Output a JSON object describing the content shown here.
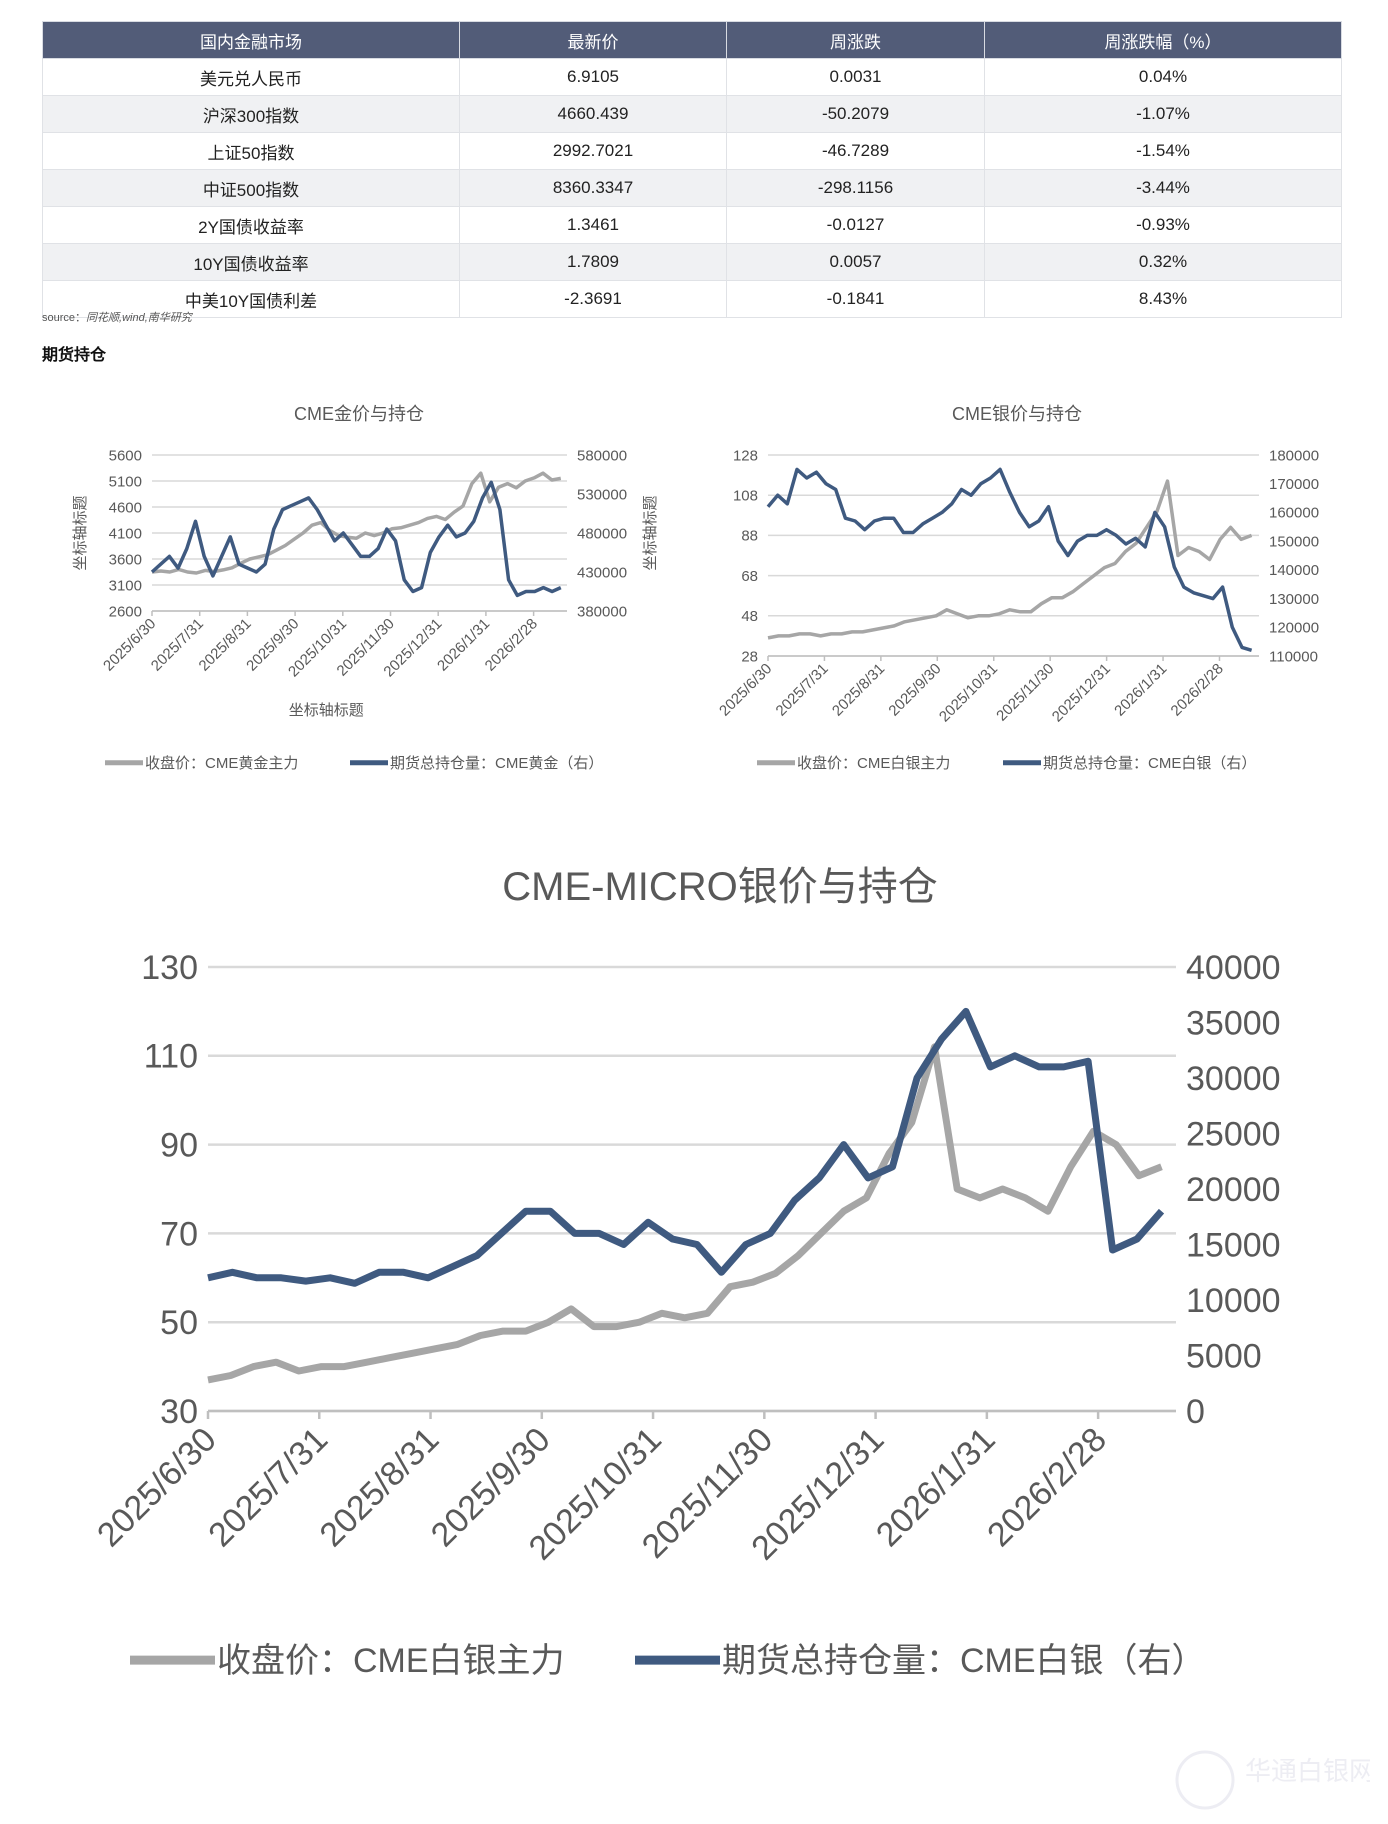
{
  "table": {
    "headers": [
      "国内金融市场",
      "最新价",
      "周涨跌",
      "周涨跌幅（%）"
    ],
    "rows": [
      [
        "美元兑人民币",
        "6.9105",
        "0.0031",
        "0.04%"
      ],
      [
        "沪深300指数",
        "4660.439",
        "-50.2079",
        "-1.07%"
      ],
      [
        "上证50指数",
        "2992.7021",
        "-46.7289",
        "-1.54%"
      ],
      [
        "中证500指数",
        "8360.3347",
        "-298.1156",
        "-3.44%"
      ],
      [
        "2Y国债收益率",
        "1.3461",
        "-0.0127",
        "-0.93%"
      ],
      [
        "10Y国债收益率",
        "1.7809",
        "0.0057",
        "0.32%"
      ],
      [
        "中美10Y国债利差",
        "-2.3691",
        "-0.1841",
        "8.43%"
      ]
    ]
  },
  "source": {
    "label": "source：",
    "text": "同花顺,wind,南华研究"
  },
  "section_title": "期货持仓",
  "colors": {
    "header": "#525c78",
    "price": "#a6a6a6",
    "oi": "#3f5a80",
    "text": "#595959",
    "grid": "#d9d9d9"
  },
  "watermark": "华通白银网 www.ebaiyin.com",
  "chart_data": [
    {
      "type": "line",
      "title": "CME金价与持仓",
      "ylabel": "坐标轴标题",
      "y2label": "坐标轴标题",
      "xlabel": "坐标轴标题",
      "ylim": [
        2600,
        5600
      ],
      "yticks": [
        5600,
        5100,
        4600,
        4100,
        3600,
        3100,
        2600
      ],
      "y2lim": [
        380000,
        580000
      ],
      "y2ticks": [
        580000,
        530000,
        480000,
        430000,
        380000
      ],
      "xticks": [
        "2025/6/30",
        "2025/7/31",
        "2025/8/31",
        "2025/9/30",
        "2025/10/31",
        "2025/11/30",
        "2025/12/31",
        "2026/1/31",
        "2026/2/28"
      ],
      "grid": true,
      "legend": "bottom",
      "series": [
        {
          "name": "收盘价：CME黄金主力",
          "axis": "left",
          "values": [
            3350,
            3370,
            3350,
            3400,
            3350,
            3330,
            3380,
            3360,
            3390,
            3430,
            3520,
            3600,
            3640,
            3680,
            3770,
            3860,
            3980,
            4100,
            4250,
            4300,
            4150,
            4050,
            4020,
            4000,
            4100,
            4050,
            4100,
            4180,
            4200,
            4250,
            4300,
            4380,
            4420,
            4360,
            4500,
            4620,
            5050,
            5250,
            4700,
            4980,
            5050,
            4970,
            5100,
            5160,
            5250,
            5120,
            5150
          ]
        },
        {
          "name": "期货总持仓量：CME黄金（右）",
          "axis": "right",
          "values": [
            430000,
            440000,
            450000,
            435000,
            460000,
            495000,
            450000,
            425000,
            450000,
            475000,
            440000,
            435000,
            430000,
            440000,
            485000,
            510000,
            515000,
            520000,
            525000,
            510000,
            490000,
            470000,
            480000,
            465000,
            450000,
            450000,
            460000,
            485000,
            470000,
            420000,
            405000,
            410000,
            455000,
            475000,
            490000,
            475000,
            480000,
            495000,
            525000,
            545000,
            510000,
            420000,
            400000,
            405000,
            405000,
            410000,
            405000,
            410000
          ]
        }
      ]
    },
    {
      "type": "line",
      "title": "CME银价与持仓",
      "ylim": [
        28,
        128
      ],
      "yticks": [
        128,
        108,
        88,
        68,
        48,
        28
      ],
      "y2lim": [
        110000,
        180000
      ],
      "y2ticks": [
        180000,
        170000,
        160000,
        150000,
        140000,
        130000,
        120000,
        110000
      ],
      "xticks": [
        "2025/6/30",
        "2025/7/31",
        "2025/8/31",
        "2025/9/30",
        "2025/10/31",
        "2025/11/30",
        "2025/12/31",
        "2026/1/31",
        "2026/2/28"
      ],
      "grid": true,
      "legend": "bottom",
      "series": [
        {
          "name": "收盘价：CME白银主力",
          "axis": "left",
          "values": [
            37,
            38,
            38,
            39,
            39,
            38,
            39,
            39,
            40,
            40,
            41,
            42,
            43,
            45,
            46,
            47,
            48,
            51,
            49,
            47,
            48,
            48,
            49,
            51,
            50,
            50,
            54,
            57,
            57,
            60,
            64,
            68,
            72,
            74,
            80,
            84,
            92,
            100,
            115,
            78,
            82,
            80,
            76,
            86,
            92,
            86,
            88
          ]
        },
        {
          "name": "期货总持仓量：CME白银（右）",
          "axis": "right",
          "values": [
            162000,
            166000,
            163000,
            175000,
            172000,
            174000,
            170000,
            168000,
            158000,
            157000,
            154000,
            157000,
            158000,
            158000,
            153000,
            153000,
            156000,
            158000,
            160000,
            163000,
            168000,
            166000,
            170000,
            172000,
            175000,
            167000,
            160000,
            155000,
            157000,
            162000,
            150000,
            145000,
            150000,
            152000,
            152000,
            154000,
            152000,
            149000,
            151000,
            148000,
            160000,
            155000,
            141000,
            134000,
            132000,
            131000,
            130000,
            134000,
            120000,
            113000,
            112000
          ]
        }
      ]
    },
    {
      "type": "line",
      "title": "CME-MICRO银价与持仓",
      "ylim": [
        30,
        130
      ],
      "yticks": [
        130,
        110,
        90,
        70,
        50,
        30
      ],
      "y2lim": [
        0,
        40000
      ],
      "y2ticks": [
        40000,
        35000,
        30000,
        25000,
        20000,
        15000,
        10000,
        5000,
        0
      ],
      "xticks": [
        "2025/6/30",
        "2025/7/31",
        "2025/8/31",
        "2025/9/30",
        "2025/10/31",
        "2025/11/30",
        "2025/12/31",
        "2026/1/31",
        "2026/2/28"
      ],
      "grid": true,
      "legend": "bottom",
      "series": [
        {
          "name": "收盘价：CME白银主力",
          "axis": "left",
          "values": [
            37,
            38,
            40,
            41,
            39,
            40,
            40,
            41,
            42,
            43,
            44,
            45,
            47,
            48,
            48,
            50,
            53,
            49,
            49,
            50,
            52,
            51,
            52,
            58,
            59,
            61,
            65,
            70,
            75,
            78,
            88,
            95,
            112,
            80,
            78,
            80,
            78,
            75,
            85,
            93,
            90,
            83,
            85
          ]
        },
        {
          "name": "期货总持仓量：CME白银（右）",
          "axis": "right",
          "values": [
            12000,
            12500,
            12000,
            12000,
            11700,
            12000,
            11500,
            12500,
            12500,
            12000,
            13000,
            14000,
            16000,
            18000,
            18000,
            16000,
            16000,
            15000,
            17000,
            15500,
            15000,
            12500,
            15000,
            16000,
            19000,
            21000,
            24000,
            21000,
            22000,
            30000,
            33500,
            36000,
            31000,
            32000,
            31000,
            31000,
            31500,
            14500,
            15500,
            18000
          ]
        }
      ]
    }
  ]
}
